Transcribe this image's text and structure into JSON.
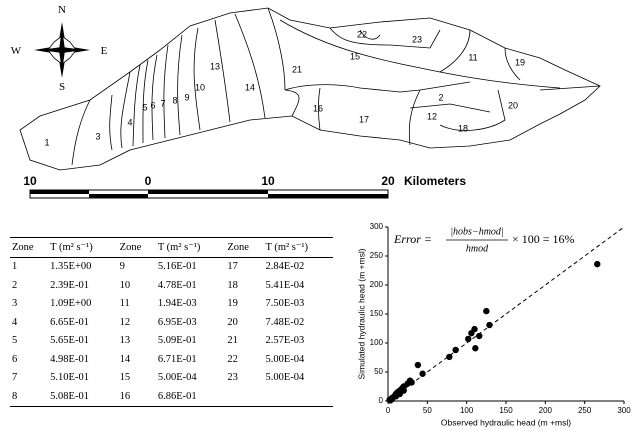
{
  "map": {
    "compass": {
      "n": "N",
      "e": "E",
      "s": "S",
      "w": "W"
    },
    "zones": [
      "1",
      "2",
      "3",
      "4",
      "5",
      "6",
      "7",
      "8",
      "9",
      "10",
      "11",
      "12",
      "13",
      "14",
      "15",
      "16",
      "17",
      "18",
      "19",
      "20",
      "21",
      "22",
      "23"
    ],
    "scale_bar": {
      "labels": [
        "10",
        "0",
        "10",
        "20"
      ],
      "unit": "Kilometers"
    }
  },
  "table": {
    "header": [
      "Zone",
      "T (m² s⁻¹)",
      "Zone",
      "T (m² s⁻¹)",
      "Zone",
      "T (m² s⁻¹)"
    ],
    "rows": [
      [
        "1",
        "1.35E+00",
        "9",
        "5.16E-01",
        "17",
        "2.84E-02"
      ],
      [
        "2",
        "2.39E-01",
        "10",
        "4.78E-01",
        "18",
        "5.41E-04"
      ],
      [
        "3",
        "1.09E+00",
        "11",
        "1.94E-03",
        "19",
        "7.50E-03"
      ],
      [
        "4",
        "6.65E-01",
        "12",
        "6.95E-03",
        "20",
        "7.48E-02"
      ],
      [
        "5",
        "5.65E-01",
        "13",
        "5.09E-01",
        "21",
        "2.57E-03"
      ],
      [
        "6",
        "4.98E-01",
        "14",
        "6.71E-01",
        "22",
        "5.00E-04"
      ],
      [
        "7",
        "5.10E-01",
        "15",
        "5.00E-04",
        "23",
        "5.00E-04"
      ],
      [
        "8",
        "5.08E-01",
        "16",
        "6.86E-01"
      ]
    ]
  },
  "chart_data": {
    "type": "scatter",
    "xlabel": "Observed hydraulic head (m +msl)",
    "ylabel": "Simulated hydraulic head (m +msl)",
    "annotation": {
      "lhs": "Error =",
      "numerator": "|hobs−hmod|",
      "denominator": "hmod",
      "rhs": "× 100 = 16%"
    },
    "x": [
      266,
      38,
      44,
      78,
      86,
      102,
      106,
      110,
      116,
      111,
      125,
      129,
      2,
      3,
      5,
      5,
      8,
      10,
      10,
      12,
      15,
      15,
      18,
      20,
      20,
      25,
      28,
      30
    ],
    "values": [
      236,
      62,
      47,
      76,
      88,
      107,
      117,
      124,
      112,
      91,
      155,
      131,
      2,
      1,
      5,
      3,
      8,
      12,
      8,
      15,
      18,
      12,
      22,
      25,
      18,
      30,
      35,
      32
    ],
    "color": "#000000",
    "xlim": [
      0,
      300
    ],
    "ylim": [
      0,
      300
    ],
    "xticks": [
      0,
      50,
      100,
      150,
      200,
      250,
      300
    ],
    "yticks": [
      0,
      50,
      100,
      150,
      200,
      250,
      300
    ]
  }
}
